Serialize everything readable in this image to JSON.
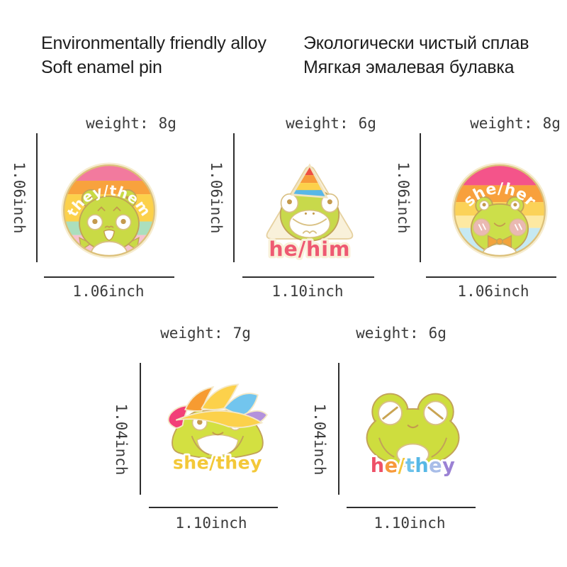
{
  "header": {
    "en_line1": "Environmentally friendly alloy",
    "en_line2": "Soft enamel pin",
    "ru_line1": "Экологически чистый сплав",
    "ru_line2": "Мягкая эмалевая булавка"
  },
  "pins": [
    {
      "pronoun": "they/them",
      "weight_label": "weight:",
      "weight_value": "8g",
      "height_label": "1.06inch",
      "width_label": "1.06inch"
    },
    {
      "pronoun": "he/him",
      "weight_label": "weight:",
      "weight_value": "6g",
      "height_label": "1.06inch",
      "width_label": "1.10inch"
    },
    {
      "pronoun": "she/her",
      "weight_label": "weight:",
      "weight_value": "8g",
      "height_label": "1.06inch",
      "width_label": "1.06inch"
    },
    {
      "pronoun": "she/they",
      "weight_label": "weight:",
      "weight_value": "7g",
      "height_label": "1.04inch",
      "width_label": "1.10inch"
    },
    {
      "pronoun": "he/they",
      "weight_label": "weight:",
      "weight_value": "6g",
      "height_label": "1.04inch",
      "width_label": "1.10inch",
      "letters": [
        {
          "ch": "h",
          "color": "#ee5168"
        },
        {
          "ch": "e",
          "color": "#f7993b"
        },
        {
          "ch": "/",
          "color": "#f3c63b"
        },
        {
          "ch": "t",
          "color": "#6fc3ea"
        },
        {
          "ch": "h",
          "color": "#57b8e6"
        },
        {
          "ch": "e",
          "color": "#a8bde8"
        },
        {
          "ch": "y",
          "color": "#9b82d4"
        }
      ]
    }
  ],
  "colors": {
    "frog_green": "#cdda44",
    "gold_outline": "#c2a258",
    "cream_backing": "#f8f0d8",
    "pink": "#f2437c",
    "soft_pink": "#f6c2cf",
    "orange": "#f79b31",
    "yellow": "#fcd14b",
    "mint": "#abdfbd",
    "sky_blue": "#72c5ee",
    "purple": "#b392dc",
    "he_him_text": "#ee5a72",
    "she_they_text": "#f3c838",
    "label_text": "#3a3a3a",
    "line_color": "#2e2e2e"
  }
}
